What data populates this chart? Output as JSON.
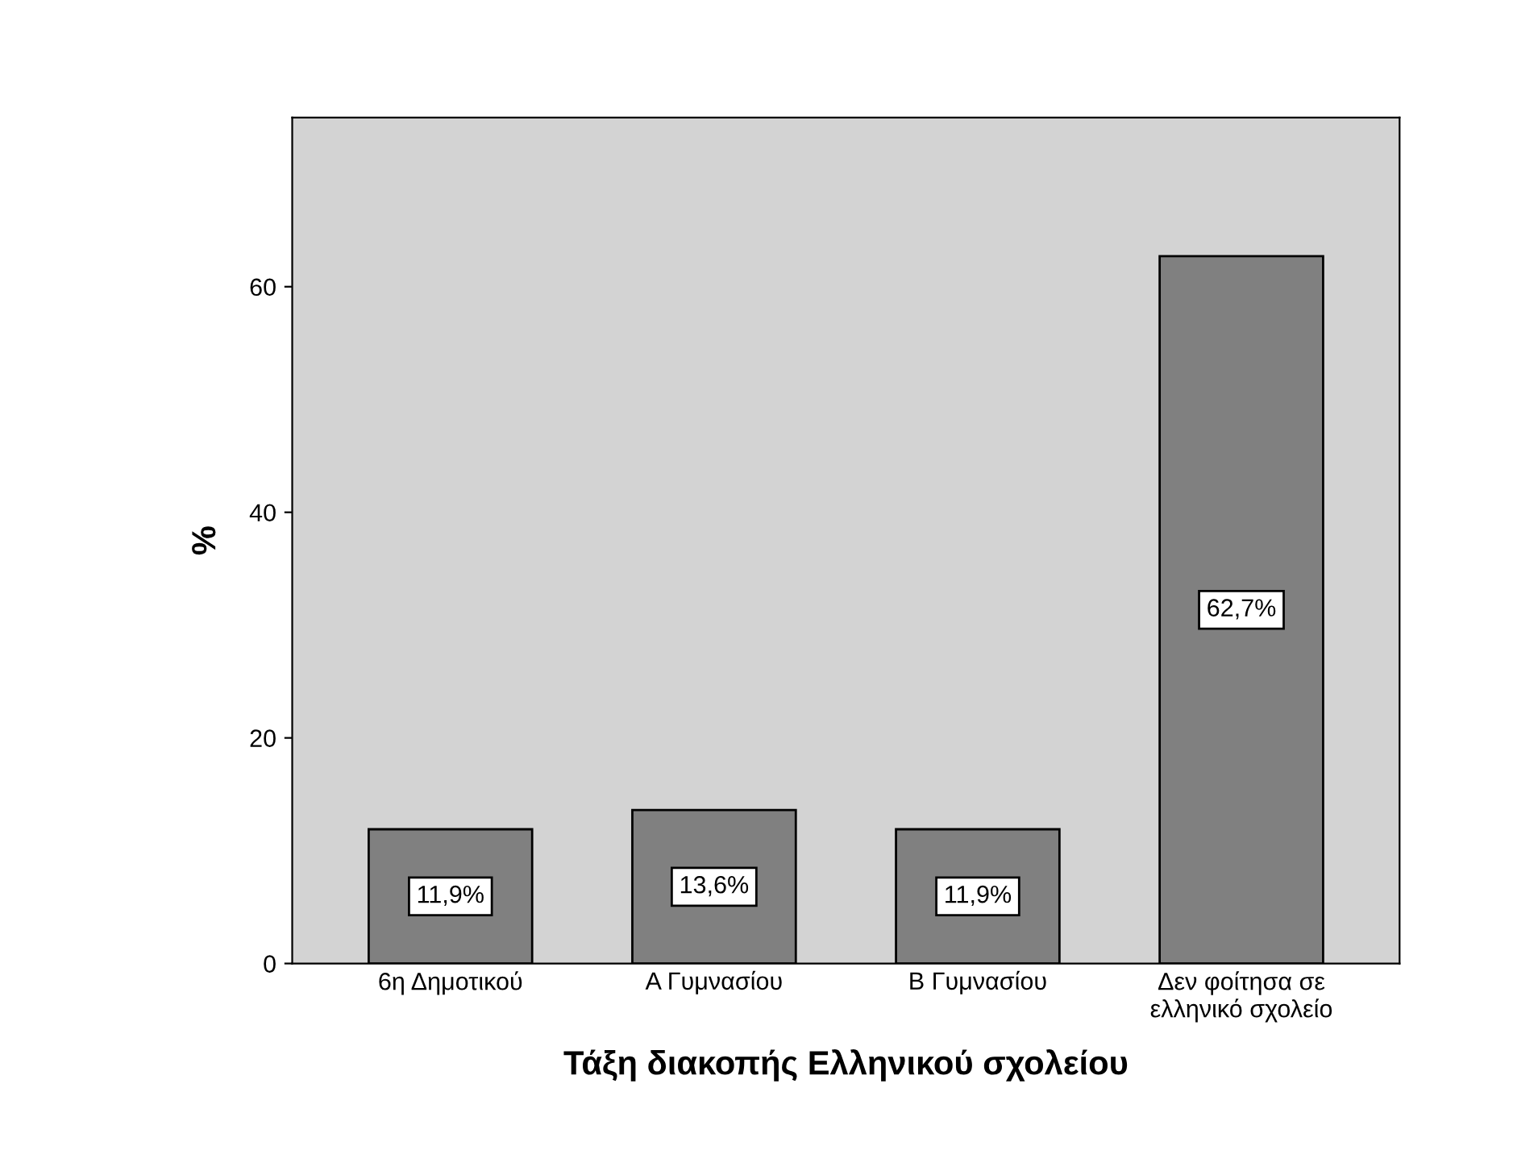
{
  "chart_data": {
    "type": "bar",
    "xlabel": "Τάξη διακοπής Ελληνικού σχολείου",
    "ylabel": "%",
    "categories": [
      "6η Δημοτικού",
      "Α Γυμνασίου",
      "Β Γυμνασίου",
      "Δεν φοίτησα σε\nελληνικό σχολείο"
    ],
    "values": [
      11.9,
      13.6,
      11.9,
      62.7
    ],
    "value_labels": [
      "11,9%",
      "13,6%",
      "11,9%",
      "62,7%"
    ],
    "color": "#808080",
    "ylim": [
      0,
      75
    ],
    "yticks": [
      0,
      20,
      40,
      60
    ],
    "grid": false
  }
}
